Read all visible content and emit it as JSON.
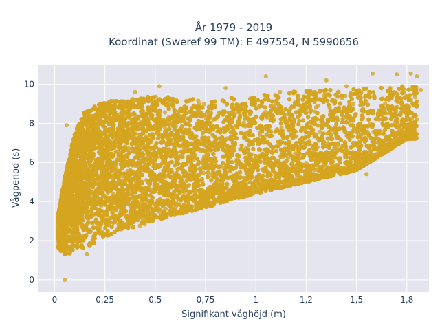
{
  "colors": {
    "plot_bg": "#e5e5f0",
    "grid": "#ffffff",
    "marker": "#d4a520",
    "text": "#2a3f5f"
  },
  "chart_data": {
    "type": "scatter",
    "title": [
      "År 1979 - 2019",
      "Koordinat (Sweref 99 TM): E 497554, N 5990656"
    ],
    "xlabel": "Signifikant våghöjd (m)",
    "ylabel": "Vågperiod (s)",
    "xlim": [
      -0.08,
      1.86
    ],
    "ylim": [
      -0.6,
      11.0
    ],
    "xticks": [
      0,
      0.25,
      0.5,
      0.75,
      1,
      1.25,
      1.5,
      1.75
    ],
    "xtick_labels": [
      "0",
      "0,25",
      "0,5",
      "0,75",
      "1",
      "1,2",
      "1,5",
      "1,8"
    ],
    "yticks": [
      0,
      2,
      4,
      6,
      8,
      10
    ],
    "ytick_labels": [
      "0",
      "2",
      "4",
      "6",
      "8",
      "10"
    ],
    "grid": true,
    "series": [
      {
        "marker_opacity": 0.8,
        "point_count": 14000,
        "lower_envelope": [
          [
            0.02,
            1.5
          ],
          [
            0.05,
            1.2
          ],
          [
            0.1,
            1.3
          ],
          [
            0.25,
            2.2
          ],
          [
            0.5,
            3.0
          ],
          [
            0.75,
            3.7
          ],
          [
            1.0,
            4.4
          ],
          [
            1.25,
            5.0
          ],
          [
            1.5,
            5.6
          ],
          [
            1.75,
            7.2
          ]
        ],
        "upper_envelope": [
          [
            0.02,
            3.4
          ],
          [
            0.05,
            5.2
          ],
          [
            0.1,
            7.5
          ],
          [
            0.15,
            8.6
          ],
          [
            0.25,
            9.1
          ],
          [
            0.5,
            9.4
          ],
          [
            0.75,
            9.2
          ],
          [
            1.0,
            9.4
          ],
          [
            1.25,
            9.7
          ],
          [
            1.5,
            9.8
          ],
          [
            1.75,
            9.9
          ]
        ],
        "outliers": [
          [
            0.05,
            0.0
          ],
          [
            0.52,
            9.9
          ],
          [
            1.05,
            10.4
          ],
          [
            1.35,
            10.2
          ],
          [
            1.58,
            10.55
          ],
          [
            1.7,
            10.5
          ],
          [
            1.77,
            10.55
          ],
          [
            1.8,
            10.4
          ],
          [
            1.82,
            9.7
          ],
          [
            1.8,
            8.2
          ],
          [
            0.06,
            7.9
          ],
          [
            0.16,
            1.3
          ],
          [
            1.55,
            5.4
          ],
          [
            1.42,
            5.4
          ],
          [
            1.28,
            5.2
          ],
          [
            0.15,
            8.5
          ],
          [
            0.4,
            9.6
          ],
          [
            0.85,
            9.8
          ],
          [
            1.12,
            9.6
          ],
          [
            1.45,
            9.9
          ]
        ]
      }
    ]
  }
}
